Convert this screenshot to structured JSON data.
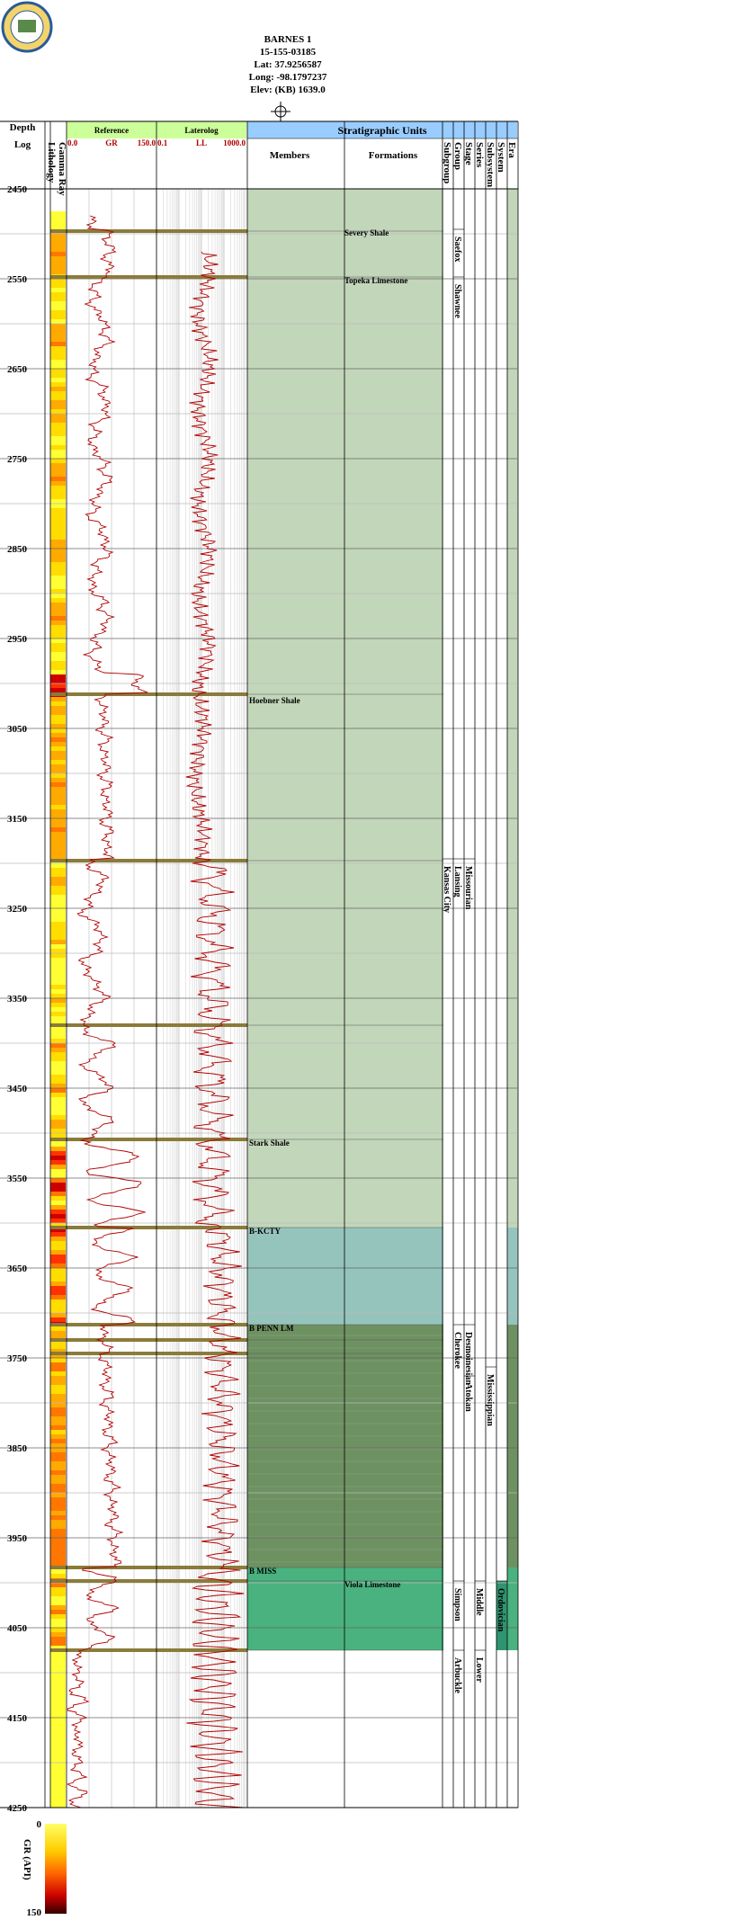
{
  "header": {
    "well_name": "BARNES 1",
    "api": "15-155-03185",
    "lat": "Lat: 37.9256587",
    "long": "Long: -98.1797237",
    "elev": "Elev: (KB) 1639.0"
  },
  "columns": {
    "depth": "Depth",
    "log": "Log",
    "lithology": "Lithology",
    "gamma_ray": "Gamma Ray",
    "reference": "Reference",
    "gr_min": "0.0",
    "gr_label": "GR",
    "gr_max": "150.0",
    "laterolog": "Laterolog",
    "ll_min": "0.1",
    "ll_label": "LL",
    "ll_max": "1000.0",
    "strat_units": "Stratigraphic Units",
    "members": "Members",
    "formations": "Formations",
    "hier": [
      "Subgroup",
      "Group",
      "Stage",
      "Series",
      "Subsystem",
      "System",
      "Era"
    ]
  },
  "colors": {
    "gr_curve": "#b00000",
    "ll_curve": "#b00000",
    "header_green": "#ccff99",
    "header_cyan": "#99ccff",
    "unit_pale": "#c2d6b9",
    "unit_teal": "#95c4bc",
    "unit_dark": "#6e9162",
    "unit_green": "#49b27e",
    "band_brown": "#8b7b3b"
  },
  "chart_data": {
    "type": "well-log",
    "depth_range": [
      2450,
      4250
    ],
    "depth_ticks": [
      2450,
      2550,
      2650,
      2750,
      2850,
      2950,
      3050,
      3150,
      3250,
      3350,
      3450,
      3550,
      3650,
      3750,
      3850,
      3950,
      4050,
      4150,
      4250
    ],
    "gr_scale": [
      0,
      150
    ],
    "ll_scale": [
      0.1,
      1000
    ],
    "members": [
      {
        "name": "Hoebner Shale",
        "depth": 3015
      },
      {
        "name": "Stark Shale",
        "depth": 3507
      },
      {
        "name": "B-KCTY",
        "depth": 3605
      },
      {
        "name": "B PENN LM",
        "depth": 3713
      },
      {
        "name": "B MISS",
        "depth": 3983
      }
    ],
    "formations": [
      {
        "name": "Severy Shale",
        "depth": 2495
      },
      {
        "name": "Topeka Limestone",
        "depth": 2548
      },
      {
        "name": "Viola Limestone",
        "depth": 3998
      }
    ],
    "subgroups": [
      {
        "name": "Kansas City",
        "top": 3195,
        "bottom": 3605
      }
    ],
    "groups": [
      {
        "name": "Saefox",
        "top": 2495,
        "bottom": 2548
      },
      {
        "name": "Shawnee",
        "top": 2548,
        "bottom": 3195
      },
      {
        "name": "Lansing",
        "top": 3195,
        "bottom": 3350
      },
      {
        "name": "Cherokee",
        "top": 3713,
        "bottom": 3770
      },
      {
        "name": "Simpson",
        "top": 3998,
        "bottom": 4075
      },
      {
        "name": "Arbuckle",
        "top": 4075,
        "bottom": 4250
      }
    ],
    "stages": [
      {
        "name": "Missourian",
        "top": 3195,
        "bottom": 3605
      },
      {
        "name": "Desmoinesian",
        "top": 3713,
        "bottom": 3770
      },
      {
        "name": "Atokan",
        "top": 3770,
        "bottom": 3830
      }
    ],
    "series": [
      {
        "name": "Middle",
        "top": 3998,
        "bottom": 4075
      },
      {
        "name": "Lower",
        "top": 4075,
        "bottom": 4130
      }
    ],
    "subsystems": [
      {
        "name": "Mississippian",
        "top": 3760,
        "bottom": 3983
      }
    ],
    "systems": [
      {
        "name": "Ordovician",
        "top": 3998,
        "bottom": 4075
      }
    ],
    "legend": {
      "label": "GR (API)",
      "min": "0",
      "max": "150"
    }
  }
}
